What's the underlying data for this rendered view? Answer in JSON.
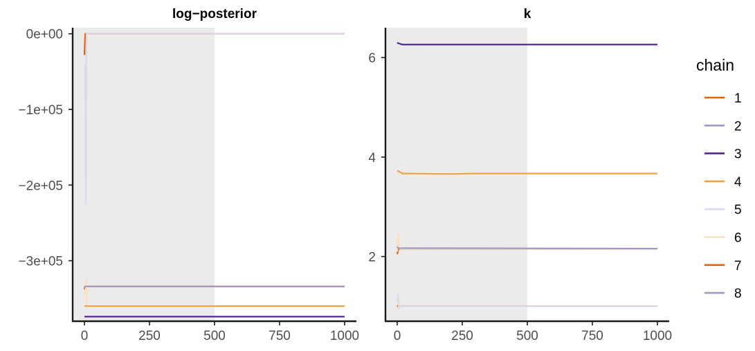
{
  "chart_data": [
    {
      "type": "line",
      "title": "log−posterior",
      "xlabel": "",
      "ylabel": "",
      "xlim": [
        0,
        1000
      ],
      "ylim": [
        -380000,
        8000
      ],
      "x_ticks": [
        0,
        250,
        500,
        750,
        1000
      ],
      "x_tick_labels": [
        "0",
        "250",
        "500",
        "750",
        "1000"
      ],
      "y_ticks": [
        0,
        -100000,
        -200000,
        -300000
      ],
      "y_tick_labels": [
        "0e+00",
        "−1e+05",
        "−2e+05",
        "−3e+05"
      ],
      "warmup_region": [
        0,
        500
      ],
      "grid": false,
      "series": [
        {
          "name": "1",
          "x": [
            0,
            3,
            1000
          ],
          "y": [
            -28000,
            0,
            0
          ]
        },
        {
          "name": "2",
          "x": [
            0,
            3,
            1000
          ],
          "y": [
            -336000,
            -334000,
            -334000
          ]
        },
        {
          "name": "3",
          "x": [
            0,
            3,
            1000
          ],
          "y": [
            -374000,
            -374000,
            -374000
          ]
        },
        {
          "name": "4",
          "x": [
            0,
            3,
            1000
          ],
          "y": [
            -360000,
            -360000,
            -360000
          ]
        },
        {
          "name": "5",
          "x": [
            0,
            3,
            5,
            8,
            1000
          ],
          "y": [
            -40000,
            -40000,
            -225000,
            0,
            0
          ]
        },
        {
          "name": "6",
          "x": [
            0,
            4,
            8,
            10,
            1000
          ],
          "y": [
            -345000,
            -340000,
            -325000,
            -360000,
            -360000
          ]
        },
        {
          "name": "7",
          "x": [
            0,
            3,
            1000
          ],
          "y": [
            -338000,
            -334000,
            -334000
          ]
        },
        {
          "name": "8",
          "x": [
            0,
            3,
            1000
          ],
          "y": [
            -335000,
            -334000,
            -334000
          ]
        }
      ]
    },
    {
      "type": "line",
      "title": "k",
      "xlabel": "",
      "ylabel": "",
      "xlim": [
        0,
        1000
      ],
      "ylim": [
        0.7,
        6.6
      ],
      "x_ticks": [
        0,
        250,
        500,
        750,
        1000
      ],
      "x_tick_labels": [
        "0",
        "250",
        "500",
        "750",
        "1000"
      ],
      "y_ticks": [
        2,
        4,
        6
      ],
      "y_tick_labels": [
        "2",
        "4",
        "6"
      ],
      "warmup_region": [
        0,
        500
      ],
      "grid": false,
      "series": [
        {
          "name": "1",
          "x": [
            0,
            3,
            1000
          ],
          "y": [
            1.02,
            1.0,
            1.0
          ]
        },
        {
          "name": "2",
          "x": [
            0,
            3,
            1000
          ],
          "y": [
            2.15,
            2.16,
            2.16
          ]
        },
        {
          "name": "3",
          "x": [
            0,
            3,
            20,
            50,
            1000
          ],
          "y": [
            6.3,
            6.29,
            6.26,
            6.26,
            6.26
          ]
        },
        {
          "name": "4",
          "x": [
            0,
            3,
            20,
            200,
            300,
            1000
          ],
          "y": [
            3.73,
            3.72,
            3.67,
            3.66,
            3.67,
            3.67
          ]
        },
        {
          "name": "5",
          "x": [
            0,
            3,
            6,
            8,
            1000
          ],
          "y": [
            1.1,
            1.25,
            0.95,
            1.0,
            1.0
          ]
        },
        {
          "name": "6",
          "x": [
            0,
            4,
            7,
            10,
            1000
          ],
          "y": [
            2.1,
            2.45,
            2.2,
            2.16,
            2.16
          ]
        },
        {
          "name": "7",
          "x": [
            0,
            3,
            6,
            1000
          ],
          "y": [
            2.05,
            2.12,
            2.16,
            2.16
          ]
        },
        {
          "name": "8",
          "x": [
            0,
            3,
            1000
          ],
          "y": [
            2.2,
            2.17,
            2.16
          ]
        }
      ]
    }
  ],
  "legend": {
    "title": "chain",
    "placement": "right",
    "items": [
      {
        "label": "1",
        "color": "#e66101"
      },
      {
        "label": "2",
        "color": "#9e9ac8"
      },
      {
        "label": "3",
        "color": "#54278f"
      },
      {
        "label": "4",
        "color": "#f1a340"
      },
      {
        "label": "5",
        "color": "#dadaeb"
      },
      {
        "label": "6",
        "color": "#fee0b6"
      },
      {
        "label": "7",
        "color": "#e66101"
      },
      {
        "label": "8",
        "color": "#9e9ac8"
      }
    ]
  },
  "colors": {
    "warmup_shade": "#ebebeb",
    "axis": "#1a1a1a",
    "tick_label": "#4d4d4d"
  }
}
